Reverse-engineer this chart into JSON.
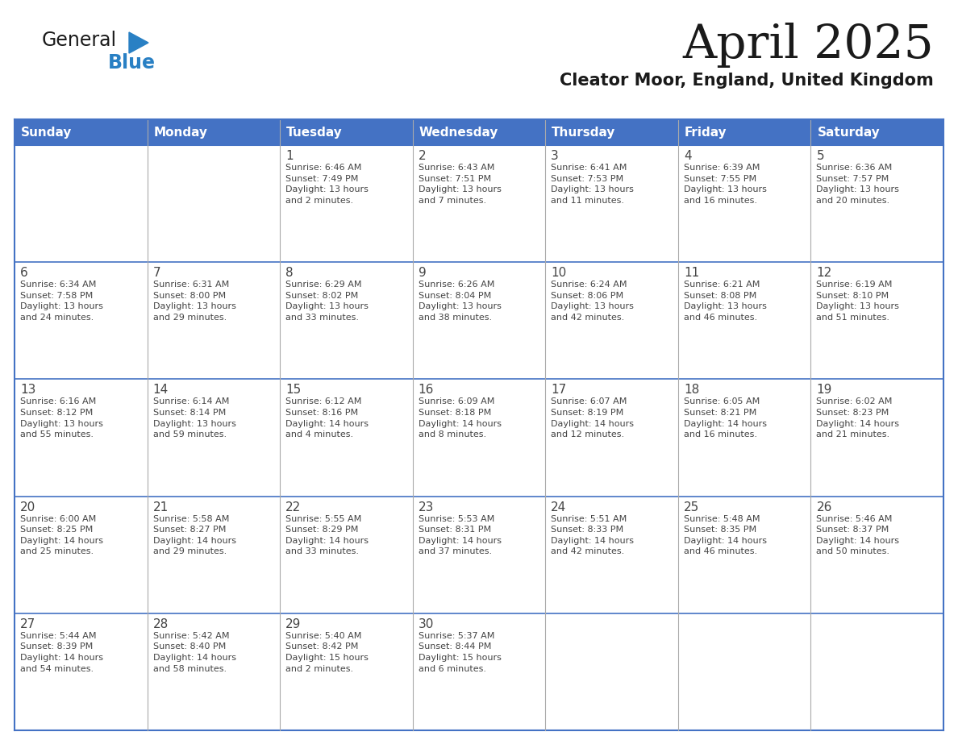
{
  "title": "April 2025",
  "subtitle": "Cleator Moor, England, United Kingdom",
  "header_bg_color": "#4472C4",
  "header_text_color": "#FFFFFF",
  "border_color": "#4472C4",
  "grid_color": "#AAAAAA",
  "text_color": "#444444",
  "day_headers": [
    "Sunday",
    "Monday",
    "Tuesday",
    "Wednesday",
    "Thursday",
    "Friday",
    "Saturday"
  ],
  "calendar_data": [
    [
      {
        "day": "",
        "info": ""
      },
      {
        "day": "",
        "info": ""
      },
      {
        "day": "1",
        "info": "Sunrise: 6:46 AM\nSunset: 7:49 PM\nDaylight: 13 hours\nand 2 minutes."
      },
      {
        "day": "2",
        "info": "Sunrise: 6:43 AM\nSunset: 7:51 PM\nDaylight: 13 hours\nand 7 minutes."
      },
      {
        "day": "3",
        "info": "Sunrise: 6:41 AM\nSunset: 7:53 PM\nDaylight: 13 hours\nand 11 minutes."
      },
      {
        "day": "4",
        "info": "Sunrise: 6:39 AM\nSunset: 7:55 PM\nDaylight: 13 hours\nand 16 minutes."
      },
      {
        "day": "5",
        "info": "Sunrise: 6:36 AM\nSunset: 7:57 PM\nDaylight: 13 hours\nand 20 minutes."
      }
    ],
    [
      {
        "day": "6",
        "info": "Sunrise: 6:34 AM\nSunset: 7:58 PM\nDaylight: 13 hours\nand 24 minutes."
      },
      {
        "day": "7",
        "info": "Sunrise: 6:31 AM\nSunset: 8:00 PM\nDaylight: 13 hours\nand 29 minutes."
      },
      {
        "day": "8",
        "info": "Sunrise: 6:29 AM\nSunset: 8:02 PM\nDaylight: 13 hours\nand 33 minutes."
      },
      {
        "day": "9",
        "info": "Sunrise: 6:26 AM\nSunset: 8:04 PM\nDaylight: 13 hours\nand 38 minutes."
      },
      {
        "day": "10",
        "info": "Sunrise: 6:24 AM\nSunset: 8:06 PM\nDaylight: 13 hours\nand 42 minutes."
      },
      {
        "day": "11",
        "info": "Sunrise: 6:21 AM\nSunset: 8:08 PM\nDaylight: 13 hours\nand 46 minutes."
      },
      {
        "day": "12",
        "info": "Sunrise: 6:19 AM\nSunset: 8:10 PM\nDaylight: 13 hours\nand 51 minutes."
      }
    ],
    [
      {
        "day": "13",
        "info": "Sunrise: 6:16 AM\nSunset: 8:12 PM\nDaylight: 13 hours\nand 55 minutes."
      },
      {
        "day": "14",
        "info": "Sunrise: 6:14 AM\nSunset: 8:14 PM\nDaylight: 13 hours\nand 59 minutes."
      },
      {
        "day": "15",
        "info": "Sunrise: 6:12 AM\nSunset: 8:16 PM\nDaylight: 14 hours\nand 4 minutes."
      },
      {
        "day": "16",
        "info": "Sunrise: 6:09 AM\nSunset: 8:18 PM\nDaylight: 14 hours\nand 8 minutes."
      },
      {
        "day": "17",
        "info": "Sunrise: 6:07 AM\nSunset: 8:19 PM\nDaylight: 14 hours\nand 12 minutes."
      },
      {
        "day": "18",
        "info": "Sunrise: 6:05 AM\nSunset: 8:21 PM\nDaylight: 14 hours\nand 16 minutes."
      },
      {
        "day": "19",
        "info": "Sunrise: 6:02 AM\nSunset: 8:23 PM\nDaylight: 14 hours\nand 21 minutes."
      }
    ],
    [
      {
        "day": "20",
        "info": "Sunrise: 6:00 AM\nSunset: 8:25 PM\nDaylight: 14 hours\nand 25 minutes."
      },
      {
        "day": "21",
        "info": "Sunrise: 5:58 AM\nSunset: 8:27 PM\nDaylight: 14 hours\nand 29 minutes."
      },
      {
        "day": "22",
        "info": "Sunrise: 5:55 AM\nSunset: 8:29 PM\nDaylight: 14 hours\nand 33 minutes."
      },
      {
        "day": "23",
        "info": "Sunrise: 5:53 AM\nSunset: 8:31 PM\nDaylight: 14 hours\nand 37 minutes."
      },
      {
        "day": "24",
        "info": "Sunrise: 5:51 AM\nSunset: 8:33 PM\nDaylight: 14 hours\nand 42 minutes."
      },
      {
        "day": "25",
        "info": "Sunrise: 5:48 AM\nSunset: 8:35 PM\nDaylight: 14 hours\nand 46 minutes."
      },
      {
        "day": "26",
        "info": "Sunrise: 5:46 AM\nSunset: 8:37 PM\nDaylight: 14 hours\nand 50 minutes."
      }
    ],
    [
      {
        "day": "27",
        "info": "Sunrise: 5:44 AM\nSunset: 8:39 PM\nDaylight: 14 hours\nand 54 minutes."
      },
      {
        "day": "28",
        "info": "Sunrise: 5:42 AM\nSunset: 8:40 PM\nDaylight: 14 hours\nand 58 minutes."
      },
      {
        "day": "29",
        "info": "Sunrise: 5:40 AM\nSunset: 8:42 PM\nDaylight: 15 hours\nand 2 minutes."
      },
      {
        "day": "30",
        "info": "Sunrise: 5:37 AM\nSunset: 8:44 PM\nDaylight: 15 hours\nand 6 minutes."
      },
      {
        "day": "",
        "info": ""
      },
      {
        "day": "",
        "info": ""
      },
      {
        "day": "",
        "info": ""
      }
    ]
  ],
  "logo_general_color": "#1a1a1a",
  "logo_blue_color": "#2980C4",
  "logo_triangle_color": "#2980C4",
  "title_color": "#1a1a1a",
  "subtitle_color": "#1a1a1a",
  "fig_width": 11.88,
  "fig_height": 9.18,
  "dpi": 100
}
